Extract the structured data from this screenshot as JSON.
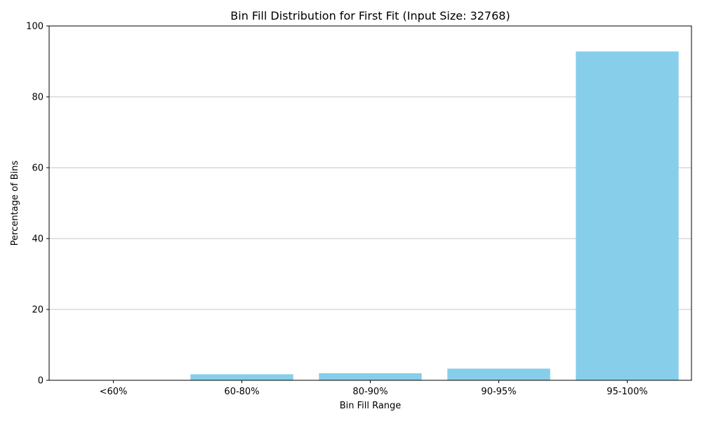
{
  "chart_data": {
    "type": "bar",
    "title": "Bin Fill Distribution for First Fit (Input Size: 32768)",
    "xlabel": "Bin Fill Range",
    "ylabel": "Percentage of Bins",
    "categories": [
      "<60%",
      "60-80%",
      "80-90%",
      "90-95%",
      "95-100%"
    ],
    "values": [
      0.1,
      1.7,
      2.0,
      3.3,
      92.8
    ],
    "ylim": [
      0,
      100
    ],
    "yticks": [
      "0",
      "20",
      "40",
      "60",
      "80",
      "100"
    ],
    "ytick_values": [
      0,
      20,
      40,
      60,
      80,
      100
    ],
    "grid": "y-axis only",
    "bar_color": "#87ceeb",
    "grid_color": "#b0b0b0"
  }
}
